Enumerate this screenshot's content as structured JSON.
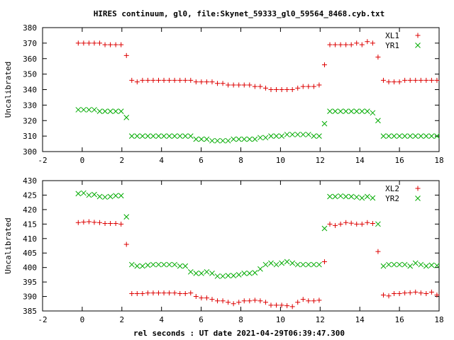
{
  "title": "HIRES continuum, gl0, file:Skynet_59333_gl0_59564_8468.cyb.txt",
  "xlabel": "rel seconds : UT date 2021-04-29T06:39:47.300",
  "colors": {
    "plus": "#dd0000",
    "cross": "#00aa00"
  },
  "chart_data": [
    {
      "type": "scatter",
      "ylabel": "Uncalibrated",
      "xlim": [
        -2,
        18
      ],
      "ylim": [
        300,
        380
      ],
      "xticks": [
        -2,
        0,
        2,
        4,
        6,
        8,
        10,
        12,
        14,
        16,
        18
      ],
      "yticks": [
        300,
        310,
        320,
        330,
        340,
        350,
        360,
        370,
        380
      ],
      "legend": "top-right",
      "series": [
        {
          "name": "XL1",
          "marker": "plus",
          "x": [
            -0.2,
            0.07,
            0.34,
            0.61,
            0.88,
            1.15,
            1.42,
            1.69,
            1.96,
            2.23,
            2.5,
            2.77,
            3.04,
            3.31,
            3.58,
            3.85,
            4.12,
            4.39,
            4.66,
            4.93,
            5.2,
            5.47,
            5.74,
            6.01,
            6.28,
            6.55,
            6.82,
            7.09,
            7.36,
            7.63,
            7.9,
            8.17,
            8.44,
            8.71,
            8.98,
            9.25,
            9.52,
            9.79,
            10.06,
            10.33,
            10.6,
            10.87,
            11.14,
            11.41,
            11.68,
            11.95,
            12.22,
            12.49,
            12.76,
            13.03,
            13.3,
            13.57,
            13.84,
            14.11,
            14.38,
            14.65,
            14.92,
            15.19,
            15.46,
            15.73,
            16.0,
            16.27,
            16.54,
            16.81,
            17.08,
            17.35,
            17.62,
            17.89
          ],
          "y": [
            370,
            370,
            370,
            370,
            370,
            369,
            369,
            369,
            369,
            362,
            346,
            345,
            346,
            346,
            346,
            346,
            346,
            346,
            346,
            346,
            346,
            346,
            345,
            345,
            345,
            345,
            344,
            344,
            343,
            343,
            343,
            343,
            343,
            342,
            342,
            341,
            340,
            340,
            340,
            340,
            340,
            341,
            342,
            342,
            342,
            343,
            356,
            369,
            369,
            369,
            369,
            369,
            370,
            369,
            371,
            370,
            361,
            346,
            345,
            345,
            345,
            346,
            346,
            346,
            346,
            346,
            346,
            346
          ]
        },
        {
          "name": "YR1",
          "marker": "cross",
          "x": [
            -0.2,
            0.07,
            0.34,
            0.61,
            0.88,
            1.15,
            1.42,
            1.69,
            1.96,
            2.23,
            2.5,
            2.77,
            3.04,
            3.31,
            3.58,
            3.85,
            4.12,
            4.39,
            4.66,
            4.93,
            5.2,
            5.47,
            5.74,
            6.01,
            6.28,
            6.55,
            6.82,
            7.09,
            7.36,
            7.63,
            7.9,
            8.17,
            8.44,
            8.71,
            8.98,
            9.25,
            9.52,
            9.79,
            10.06,
            10.33,
            10.6,
            10.87,
            11.14,
            11.41,
            11.68,
            11.95,
            12.22,
            12.49,
            12.76,
            13.03,
            13.3,
            13.57,
            13.84,
            14.11,
            14.38,
            14.65,
            14.92,
            15.19,
            15.46,
            15.73,
            16.0,
            16.27,
            16.54,
            16.81,
            17.08,
            17.35,
            17.62,
            17.89
          ],
          "y": [
            327,
            327,
            327,
            327,
            326,
            326,
            326,
            326,
            326,
            322,
            310,
            310,
            310,
            310,
            310,
            310,
            310,
            310,
            310,
            310,
            310,
            310,
            308,
            308,
            308,
            307,
            307,
            307,
            307,
            308,
            308,
            308,
            308,
            308,
            309,
            309,
            310,
            310,
            310,
            311,
            311,
            311,
            311,
            311,
            310,
            310,
            318,
            326,
            326,
            326,
            326,
            326,
            326,
            326,
            326,
            325,
            320,
            310,
            310,
            310,
            310,
            310,
            310,
            310,
            310,
            310,
            310,
            310
          ]
        }
      ]
    },
    {
      "type": "scatter",
      "ylabel": "Uncalibrated",
      "xlim": [
        -2,
        18
      ],
      "ylim": [
        385,
        430
      ],
      "xticks": [
        -2,
        0,
        2,
        4,
        6,
        8,
        10,
        12,
        14,
        16,
        18
      ],
      "yticks": [
        385,
        390,
        395,
        400,
        405,
        410,
        415,
        420,
        425,
        430
      ],
      "legend": "top-right",
      "series": [
        {
          "name": "XL2",
          "marker": "plus",
          "x": [
            -0.2,
            0.07,
            0.34,
            0.61,
            0.88,
            1.15,
            1.42,
            1.69,
            1.96,
            2.23,
            2.5,
            2.77,
            3.04,
            3.31,
            3.58,
            3.85,
            4.12,
            4.39,
            4.66,
            4.93,
            5.2,
            5.47,
            5.74,
            6.01,
            6.28,
            6.55,
            6.82,
            7.09,
            7.36,
            7.63,
            7.9,
            8.17,
            8.44,
            8.71,
            8.98,
            9.25,
            9.52,
            9.79,
            10.06,
            10.33,
            10.6,
            10.87,
            11.14,
            11.41,
            11.68,
            11.95,
            12.22,
            12.49,
            12.76,
            13.03,
            13.3,
            13.57,
            13.84,
            14.11,
            14.38,
            14.65,
            14.92,
            15.19,
            15.46,
            15.73,
            16.0,
            16.27,
            16.54,
            16.81,
            17.08,
            17.35,
            17.62,
            17.89
          ],
          "y": [
            415.5,
            415.7,
            415.8,
            415.6,
            415.5,
            415.2,
            415.2,
            415.2,
            415,
            408,
            391,
            391,
            391,
            391.2,
            391.2,
            391.2,
            391.2,
            391.2,
            391.2,
            391,
            391,
            391.2,
            390,
            389.5,
            389.5,
            389,
            388.5,
            388.5,
            388,
            387.5,
            388,
            388.5,
            388.5,
            388.7,
            388.5,
            388,
            387,
            387,
            387,
            386.8,
            386.5,
            388,
            389,
            388.5,
            388.5,
            388.7,
            402,
            415,
            414.5,
            415,
            415.5,
            415.3,
            415,
            415,
            415.5,
            415.2,
            405.5,
            390.5,
            390.2,
            391,
            391,
            391.2,
            391.3,
            391.5,
            391.2,
            391,
            391.5,
            390.5
          ]
        },
        {
          "name": "YR2",
          "marker": "cross",
          "x": [
            -0.2,
            0.07,
            0.34,
            0.61,
            0.88,
            1.15,
            1.42,
            1.69,
            1.96,
            2.23,
            2.5,
            2.77,
            3.04,
            3.31,
            3.58,
            3.85,
            4.12,
            4.39,
            4.66,
            4.93,
            5.2,
            5.47,
            5.74,
            6.01,
            6.28,
            6.55,
            6.82,
            7.09,
            7.36,
            7.63,
            7.9,
            8.17,
            8.44,
            8.71,
            8.98,
            9.25,
            9.52,
            9.79,
            10.06,
            10.33,
            10.6,
            10.87,
            11.14,
            11.41,
            11.68,
            11.95,
            12.22,
            12.49,
            12.76,
            13.03,
            13.3,
            13.57,
            13.84,
            14.11,
            14.38,
            14.65,
            14.92,
            15.19,
            15.46,
            15.73,
            16.0,
            16.27,
            16.54,
            16.81,
            17.08,
            17.35,
            17.62,
            17.89
          ],
          "y": [
            425.5,
            425.7,
            425,
            425.2,
            424.5,
            424.3,
            424.5,
            424.8,
            424.8,
            417.5,
            401,
            400.5,
            400.5,
            400.8,
            401,
            401,
            401,
            401,
            401,
            400.5,
            400.5,
            398.5,
            398,
            398,
            398.5,
            398,
            397,
            397,
            397.2,
            397.2,
            397.5,
            398,
            398,
            398.2,
            399.5,
            401,
            401.5,
            401,
            401.5,
            402,
            401.5,
            401,
            401,
            401,
            401,
            401,
            413.5,
            424.5,
            424.5,
            424.7,
            424.5,
            424.5,
            424.3,
            424,
            424.5,
            424,
            415,
            400.5,
            401,
            401,
            401,
            401,
            400.5,
            401.5,
            401,
            400.5,
            400.8,
            400.7
          ]
        }
      ]
    }
  ]
}
